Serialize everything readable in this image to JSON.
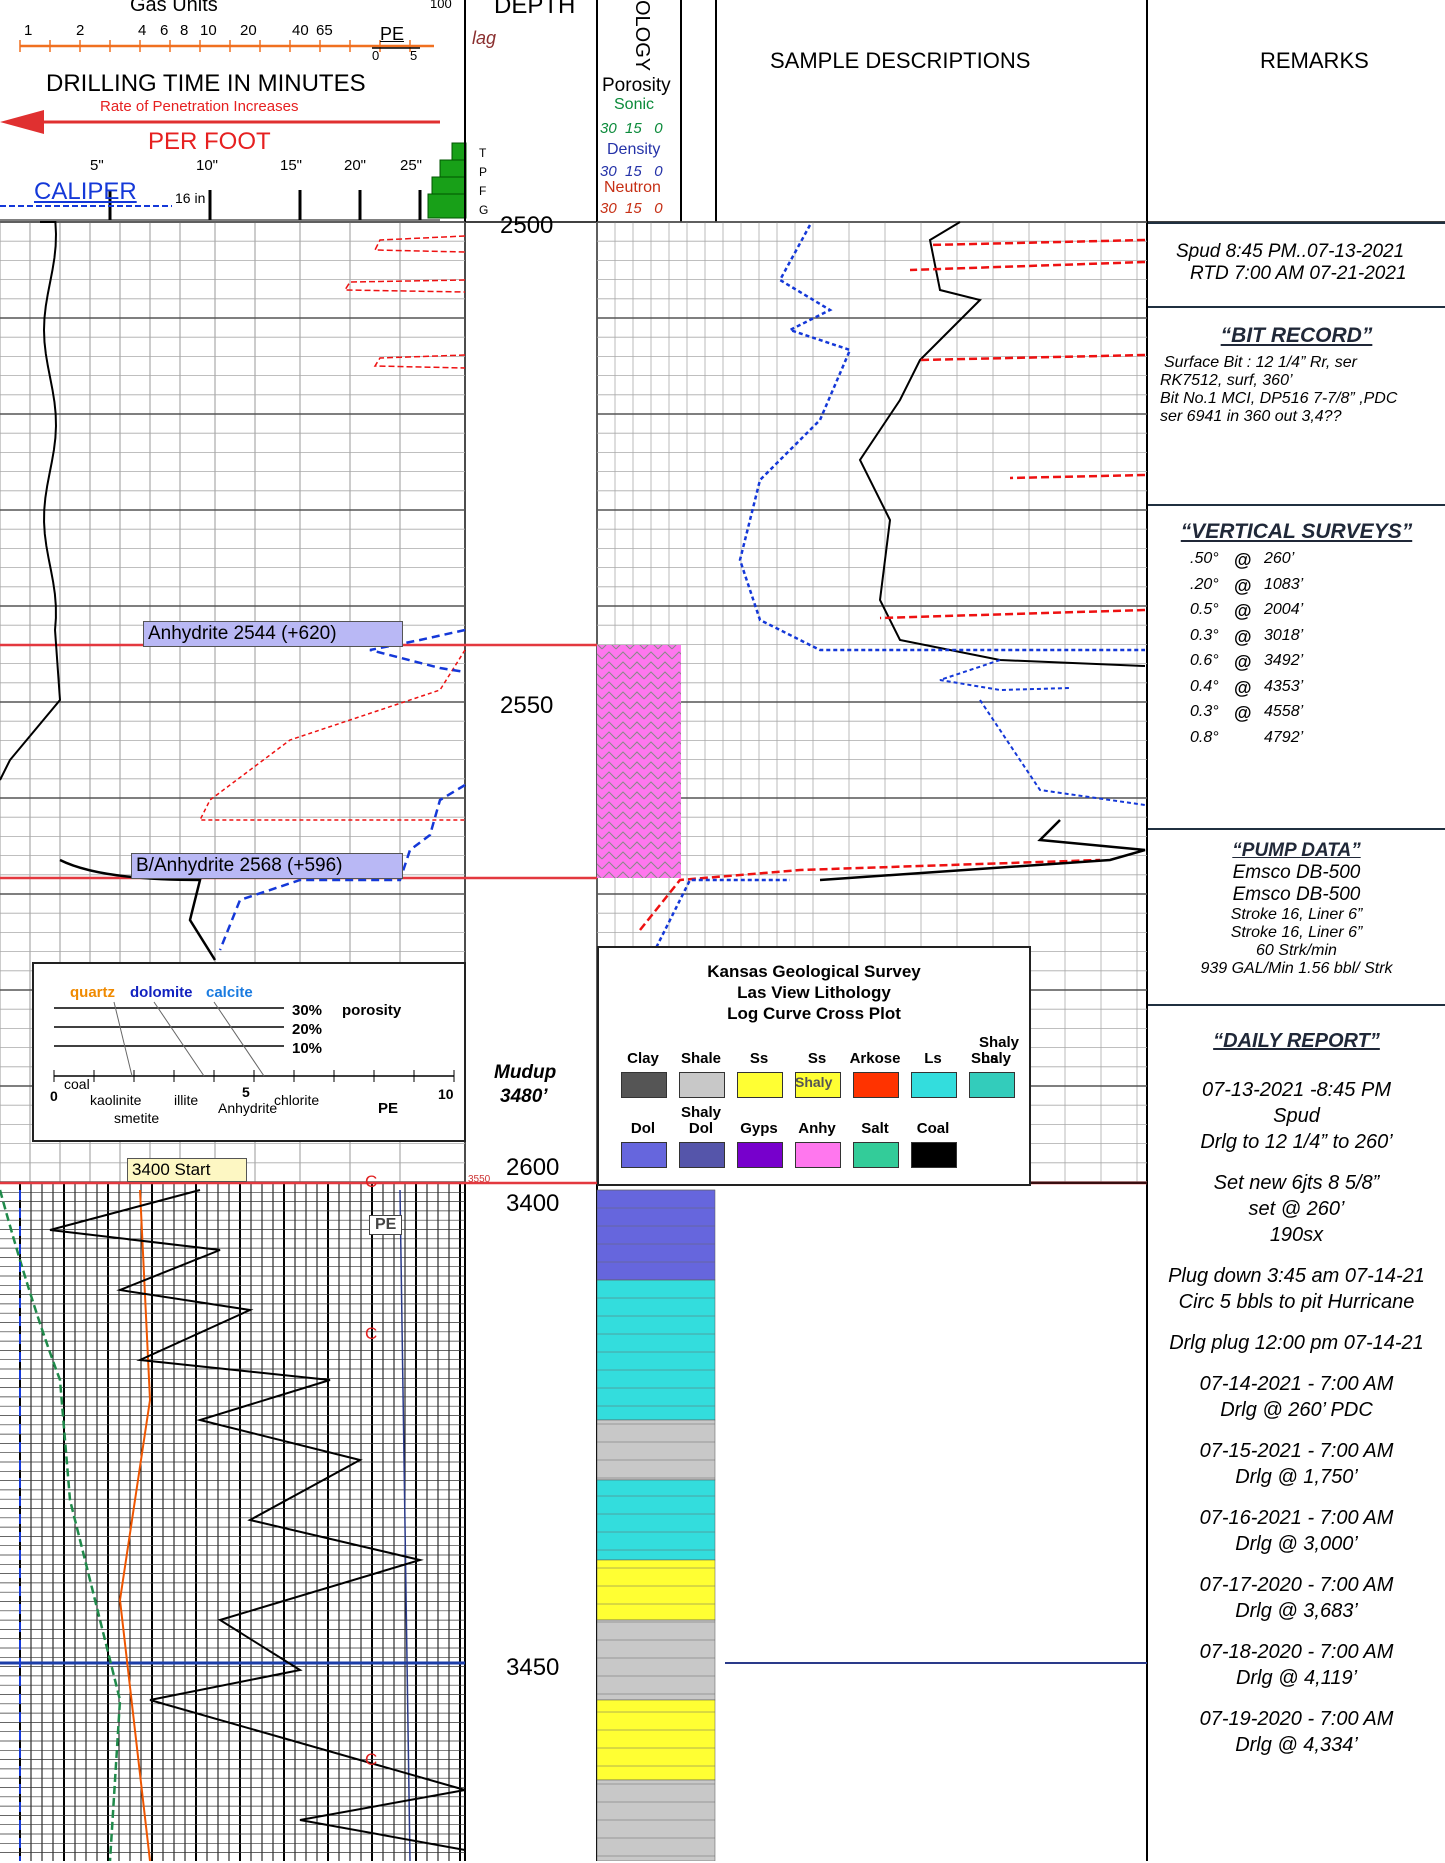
{
  "header": {
    "gas_units": "Gas Units",
    "gas_ticks": [
      "1",
      "2",
      "4",
      "6",
      "8",
      "10",
      "20",
      "40",
      "65"
    ],
    "gas_max": "100",
    "pe_label": "PE",
    "pe_ticks": [
      "0",
      "5"
    ],
    "drill_time_title": "DRILLING TIME IN MINUTES",
    "rop_note": "Rate of Penetration Increases",
    "per_foot": "PER FOOT",
    "minute_ticks": [
      "5\"",
      "10\"",
      "15\"",
      "20\"",
      "25\""
    ],
    "caliper": "CALIPER",
    "caliper_16": "16 in",
    "tpfg": [
      "T",
      "P",
      "F",
      "G"
    ],
    "depth": "DEPTH",
    "lag": "lag",
    "lithology": "OLOGY",
    "porosity": "Porosity",
    "sonic": "Sonic",
    "sonic_ticks": "30  15   0",
    "density": "Density",
    "density_ticks": "30  15   0",
    "neutron": "Neutron",
    "neutron_ticks": "30  15   0",
    "sample_desc": "SAMPLE DESCRIPTIONS",
    "remarks": "REMARKS"
  },
  "depths": {
    "d2500": "2500",
    "d2550": "2550",
    "d2600": "2600",
    "d3400": "3400",
    "d3450": "3450",
    "d3550": "3550",
    "mudup": "Mudup",
    "mudup_depth": "3480’"
  },
  "tops": {
    "anhydrite": "Anhydrite  2544 (+620)",
    "b_anhydrite": "B/Anhydrite  2568 (+596)",
    "start": "3400  Start",
    "pe_tag": "PE",
    "c_marker": "C"
  },
  "crossplot_legend": {
    "quartz": "quartz",
    "dolomite": "dolomite",
    "calcite": "calcite",
    "p30": "30%",
    "porosity": "porosity",
    "p20": "20%",
    "p10": "10%",
    "coal": "coal",
    "kaolinite": "kaolinite",
    "smetite": "smetite",
    "illite": "illite",
    "anhydrite": "Anhydrite",
    "chlorite": "chlorite",
    "pe": "PE",
    "t0": "0",
    "t5": "5",
    "t10": "10"
  },
  "litho_legend": {
    "title1": "Kansas Geological Survey",
    "title2": "Las View Lithology",
    "title3": "Log Curve Cross Plot",
    "row1": [
      "Clay",
      "Shale",
      "Ss",
      "Ss",
      "Arkose",
      "Ls",
      "Shaly"
    ],
    "row1b": [
      "Shaly",
      "Ls"
    ],
    "row2": [
      "Dol",
      "Shaly",
      "Gyps",
      "Anhy",
      "Salt",
      "Coal"
    ],
    "row2b": "Dol",
    "colors": {
      "clay": "#555555",
      "shale": "#c8c8c8",
      "ss": "#ffff33",
      "arkose": "#ff3300",
      "ls": "#33dddd",
      "shalyls": "#33ccbb",
      "dol": "#6666dd",
      "shalydol": "#5555aa",
      "gyps": "#7700cc",
      "anhy": "#ff77ee",
      "salt": "#33cc99",
      "coal": "#000000"
    }
  },
  "remarks": {
    "spud": "Spud   8:45 PM..07-13-2021",
    "rtd": "RTD  7:00 AM  07-21-2021",
    "bit_title": "“BIT RECORD”",
    "bit1": "Surface Bit :   12 1/4”  Rr,  ser",
    "bit2": "RK7512, surf, 360’",
    "bit3": " Bit No.1   MCI, DP516   7-7/8” ,PDC",
    "bit4": "ser 6941 in 360 out 3,4??",
    "vs_title": "“VERTICAL SURVEYS”",
    "surveys": [
      {
        "deg": ".50°",
        "at": "@",
        "depth": "260’"
      },
      {
        "deg": ".20°",
        "at": "@",
        "depth": "1083’"
      },
      {
        "deg": "0.5°",
        "at": "@",
        "depth": "2004’"
      },
      {
        "deg": "0.3°",
        "at": "@",
        "depth": "3018’"
      },
      {
        "deg": "0.6°",
        "at": "@",
        "depth": "3492’"
      },
      {
        "deg": "0.4°",
        "at": "@",
        "depth": "4353’"
      },
      {
        "deg": "0.3°",
        "at": "@",
        "depth": "4558’"
      },
      {
        "deg": "0.8°",
        "at": "",
        "depth": "4792’"
      }
    ],
    "pump_title": "“PUMP DATA”",
    "pump1": "Emsco DB-500",
    "pump2": "Emsco DB-500",
    "pump3": "Stroke 16, Liner 6”",
    "pump4": "Stroke 16, Liner 6”",
    "pump5": "60 Strk/min",
    "pump6": "939 GAL/Min   1.56 bbl/ Strk",
    "daily_title": "“DAILY REPORT”",
    "daily": [
      "07-13-2021 -8:45 PM",
      "Spud",
      "Drlg to 12 1/4” to 260’",
      "",
      "Set new  6jts  8 5/8”",
      "set @ 260’",
      "190sx",
      "",
      "Plug down 3:45 am 07-14-21",
      "Circ 5 bbls to pit Hurricane",
      "",
      "Drlg plug 12:00 pm 07-14-21",
      "",
      "07-14-2021 - 7:00 AM",
      "Drlg @  260’ PDC",
      "",
      "07-15-2021 - 7:00 AM",
      "Drlg  @  1,750’",
      "",
      "07-16-2021 - 7:00 AM",
      "Drlg  @  3,000’",
      "",
      "07-17-2020 - 7:00 AM",
      "Drlg  @  3,683’",
      "",
      "07-18-2020 - 7:00 AM",
      "Drlg  @  4,119’",
      "",
      "07-19-2020 - 7:00 AM",
      "Drlg  @  4,334’"
    ]
  },
  "chart_data": {
    "type": "line",
    "title": "",
    "tracks": [
      "Gas Units / Drilling Time / Caliper",
      "Depth",
      "Lithology",
      "Porosity (Sonic, Density, Neutron)",
      "Sample Descriptions",
      "Remarks"
    ],
    "depth_ticks": [
      2500,
      2550,
      2600,
      3400,
      3450
    ],
    "formation_tops": [
      {
        "name": "Anhydrite",
        "depth": 2544,
        "subsea": 620
      },
      {
        "name": "B/Anhydrite",
        "depth": 2568,
        "subsea": 596
      }
    ],
    "mudup_depth": 3480,
    "porosity_scale": [
      30,
      15,
      0
    ],
    "colors": {
      "caliper": "#0033cc",
      "rop": "#000000",
      "gas": "#ee1111",
      "sonic": "#009933",
      "density": "#2233aa",
      "neutron": "#cc3300",
      "top_line": "#e3383f"
    }
  }
}
